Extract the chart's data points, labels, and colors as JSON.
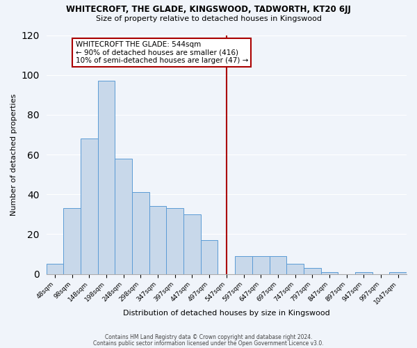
{
  "title": "WHITECROFT, THE GLADE, KINGSWOOD, TADWORTH, KT20 6JJ",
  "subtitle": "Size of property relative to detached houses in Kingswood",
  "xlabel": "Distribution of detached houses by size in Kingswood",
  "ylabel": "Number of detached properties",
  "bar_labels": [
    "48sqm",
    "98sqm",
    "148sqm",
    "198sqm",
    "248sqm",
    "298sqm",
    "347sqm",
    "397sqm",
    "447sqm",
    "497sqm",
    "547sqm",
    "597sqm",
    "647sqm",
    "697sqm",
    "747sqm",
    "797sqm",
    "847sqm",
    "897sqm",
    "947sqm",
    "997sqm",
    "1047sqm"
  ],
  "bar_values": [
    5,
    33,
    68,
    97,
    58,
    41,
    34,
    33,
    30,
    17,
    0,
    9,
    9,
    9,
    5,
    3,
    1,
    0,
    1,
    0,
    1
  ],
  "bar_color": "#C8D8EA",
  "bar_edge_color": "#5B9BD5",
  "vline_x": 10.0,
  "vline_color": "#AA0000",
  "annotation_title": "WHITECROFT THE GLADE: 544sqm",
  "annotation_line1": "← 90% of detached houses are smaller (416)",
  "annotation_line2": "10% of semi-detached houses are larger (47) →",
  "ylim": [
    0,
    120
  ],
  "yticks": [
    0,
    20,
    40,
    60,
    80,
    100,
    120
  ],
  "footer1": "Contains HM Land Registry data © Crown copyright and database right 2024.",
  "footer2": "Contains public sector information licensed under the Open Government Licence v3.0.",
  "background_color": "#F0F4FA",
  "grid_color": "#FFFFFF"
}
